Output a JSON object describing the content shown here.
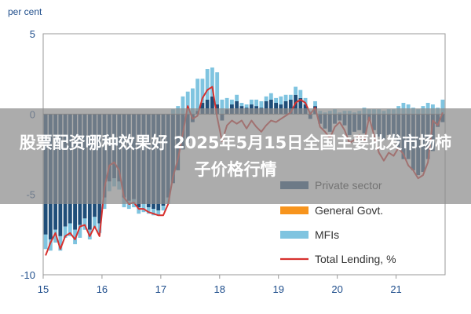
{
  "overlay": {
    "title": "股票配资哪种效果好 2025年5月15日全国主要批发市场柿子价格行情"
  },
  "chart_data": {
    "type": "bar",
    "ylabel": "per cent",
    "ylim": [
      -10,
      5
    ],
    "yticks": [
      5,
      0,
      -5,
      -10
    ],
    "xticks": [
      "15",
      "16",
      "17",
      "18",
      "19",
      "20",
      "21"
    ],
    "grid": false,
    "legend_position": "bottom-right",
    "categories": [
      "2015-01",
      "2015-02",
      "2015-03",
      "2015-04",
      "2015-05",
      "2015-06",
      "2015-07",
      "2015-08",
      "2015-09",
      "2015-10",
      "2015-11",
      "2015-12",
      "2016-01",
      "2016-02",
      "2016-03",
      "2016-04",
      "2016-05",
      "2016-06",
      "2016-07",
      "2016-08",
      "2016-09",
      "2016-10",
      "2016-11",
      "2016-12",
      "2017-01",
      "2017-02",
      "2017-03",
      "2017-04",
      "2017-05",
      "2017-06",
      "2017-07",
      "2017-08",
      "2017-09",
      "2017-10",
      "2017-11",
      "2017-12",
      "2018-01",
      "2018-02",
      "2018-03",
      "2018-04",
      "2018-05",
      "2018-06",
      "2018-07",
      "2018-08",
      "2018-09",
      "2018-10",
      "2018-11",
      "2018-12",
      "2019-01",
      "2019-02",
      "2019-03",
      "2019-04",
      "2019-05",
      "2019-06",
      "2019-07",
      "2019-08",
      "2019-09",
      "2019-10",
      "2019-11",
      "2019-12",
      "2020-01",
      "2020-02",
      "2020-03",
      "2020-04",
      "2020-05",
      "2020-06",
      "2020-07",
      "2020-08",
      "2020-09",
      "2020-10",
      "2020-11",
      "2020-12",
      "2021-01",
      "2021-02",
      "2021-03",
      "2021-04",
      "2021-05",
      "2021-06",
      "2021-07",
      "2021-08",
      "2021-09",
      "2021-10"
    ],
    "series": [
      {
        "name": "Private sector",
        "color": "#1f4e79",
        "values": [
          -7.5,
          -7.8,
          -7.2,
          -7.6,
          -7,
          -6.8,
          -7.2,
          -6.9,
          -6.5,
          -7.2,
          -6.4,
          -6.8,
          -5.2,
          -4.2,
          -4,
          -4.2,
          -5.2,
          -5.4,
          -5.3,
          -5.8,
          -5.6,
          -5.8,
          -5.9,
          -6,
          -5.7,
          -5.2,
          -4.3,
          -3.5,
          -2.2,
          -1.8,
          -0.5,
          0.2,
          0.7,
          0.9,
          1.1,
          0.6,
          -0.4,
          0.3,
          0.6,
          0.8,
          0.5,
          0.4,
          0.6,
          0.5,
          0.4,
          0.8,
          0.9,
          0.7,
          0.6,
          0.8,
          0.9,
          1.2,
          1,
          0.6,
          -0.3,
          0.5,
          -0.6,
          -0.9,
          -1.1,
          -0.6,
          -0.4,
          -0.7,
          -1.3,
          -1.1,
          -1,
          -1.2,
          -0.4,
          -1,
          -1.4,
          -1.6,
          -1.3,
          -1.6,
          -2.2,
          -2.8,
          -2.8,
          -3.5,
          -3.8,
          -3.6,
          -2.8,
          -2.3,
          -0.8,
          -0.5
        ]
      },
      {
        "name": "General Govt.",
        "color": "#f7941d",
        "values": [
          0,
          0,
          0,
          0,
          0,
          0,
          0,
          0,
          0,
          0,
          0,
          0,
          0,
          0,
          0,
          0,
          0,
          0,
          0,
          0,
          0,
          0,
          0,
          0,
          0,
          0,
          0,
          0,
          0,
          0,
          0,
          0,
          0,
          0,
          0,
          0,
          0,
          0,
          0,
          0,
          0,
          0,
          0,
          0,
          0,
          0,
          0,
          0,
          0,
          0,
          0,
          0,
          0,
          0,
          0,
          0,
          0,
          0,
          0,
          0,
          0,
          0,
          0,
          0,
          0,
          0,
          0,
          0,
          0,
          0,
          0,
          0,
          0,
          0,
          0,
          0,
          0,
          0,
          0,
          0,
          0,
          0
        ]
      },
      {
        "name": "MFIs",
        "color": "#7fc4e0",
        "values": [
          -0.9,
          -0.7,
          -0.8,
          -0.9,
          -0.7,
          -0.8,
          -0.9,
          -0.8,
          -0.7,
          -0.6,
          -0.7,
          -0.6,
          -0.7,
          -0.6,
          -0.5,
          -0.5,
          -0.6,
          -0.5,
          -0.5,
          -0.4,
          -0.5,
          -0.4,
          -0.4,
          -0.3,
          -0.3,
          -0.4,
          0.3,
          0.5,
          1.1,
          1.4,
          1.6,
          2,
          1.5,
          1.9,
          1.8,
          2,
          0.9,
          0.7,
          0.3,
          0.4,
          0.2,
          0.2,
          0.3,
          0.4,
          0.4,
          0.3,
          0.4,
          0.3,
          0.5,
          0.4,
          0.3,
          0.5,
          0.5,
          0.4,
          0.2,
          0.3,
          0.2,
          0.1,
          0.2,
          0.3,
          0.1,
          0.2,
          0.2,
          0.1,
          0.2,
          0.4,
          0.3,
          0.3,
          0.3,
          0.2,
          0.3,
          0.3,
          0.5,
          0.7,
          0.6,
          0.4,
          0.3,
          0.5,
          0.7,
          0.6,
          0.4,
          0.9
        ]
      },
      {
        "name": "Total Lending, %",
        "color": "#d7312e",
        "type": "line",
        "values": [
          -8.8,
          -8,
          -7.4,
          -8.4,
          -7.6,
          -7.4,
          -7.8,
          -7,
          -6.9,
          -7.6,
          -7,
          -7.6,
          -4.6,
          -3.2,
          -3,
          -3.5,
          -5.2,
          -5.6,
          -5.5,
          -5.9,
          -5.9,
          -6.1,
          -6.2,
          -6.3,
          -6.3,
          -5.6,
          -3.9,
          -2.8,
          -1.2,
          0.5,
          -0.3,
          -0.1,
          1,
          1.5,
          1.7,
          -0.2,
          -1.7,
          -0.7,
          -0.4,
          -0.6,
          -0.4,
          -0.9,
          -0.4,
          -0.8,
          -1.1,
          -0.7,
          -0.4,
          -0.5,
          -0.3,
          -0.1,
          0.1,
          0.7,
          0.9,
          0.7,
          0,
          0.4,
          -0.8,
          -1.1,
          -1.5,
          -0.8,
          -0.5,
          -1,
          -1.8,
          -1.6,
          -1.3,
          -1.7,
          -0.2,
          -1.3,
          -2.4,
          -2.9,
          -2.4,
          -2.6,
          -2.1,
          -2.5,
          -3.2,
          -3.5,
          -4,
          -3.8,
          -3,
          -0.4,
          -0.7,
          0.1
        ]
      }
    ]
  }
}
